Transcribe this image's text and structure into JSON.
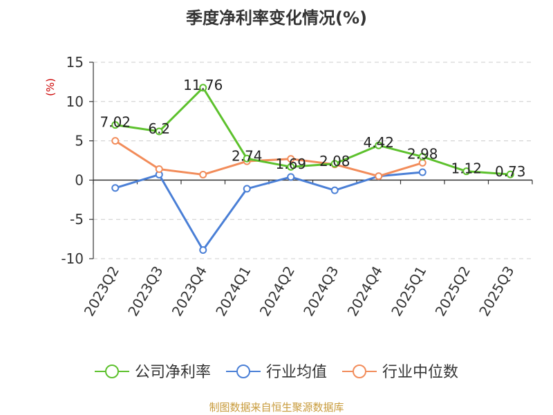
{
  "header": {
    "title": "季度净利率变化情况(%)"
  },
  "footer": {
    "source": "制图数据来自恒生聚源数据库"
  },
  "chart_data": {
    "type": "line",
    "title": "季度净利率变化情况(%)",
    "ylabel": "(%)",
    "xlabel": "",
    "categories": [
      "2023Q2",
      "2023Q3",
      "2023Q4",
      "2024Q1",
      "2024Q2",
      "2024Q3",
      "2024Q4",
      "2025Q1",
      "2025Q2",
      "2025Q3"
    ],
    "ylim": [
      -10,
      15
    ],
    "yticks": [
      15,
      10,
      5,
      0,
      -5,
      -10
    ],
    "grid": true,
    "legend_position": "bottom",
    "series": [
      {
        "name": "公司净利率",
        "color": "#5dc12d",
        "values": [
          7.02,
          6.2,
          11.76,
          2.74,
          1.69,
          2.08,
          4.42,
          2.98,
          1.12,
          0.73
        ],
        "labels": [
          "7.02",
          "6.2",
          "11.76",
          "2.74",
          "1.69",
          "2.08",
          "4.42",
          "2.98",
          "1.12",
          "0.73"
        ]
      },
      {
        "name": "行业均值",
        "color": "#4a7fd6",
        "values": [
          -1.0,
          0.7,
          -8.9,
          -1.1,
          0.4,
          -1.3,
          0.5,
          1.0,
          null,
          null
        ]
      },
      {
        "name": "行业中位数",
        "color": "#f28c5a",
        "values": [
          5.0,
          1.4,
          0.7,
          2.4,
          2.7,
          2.0,
          0.5,
          2.2,
          null,
          null
        ]
      }
    ]
  }
}
